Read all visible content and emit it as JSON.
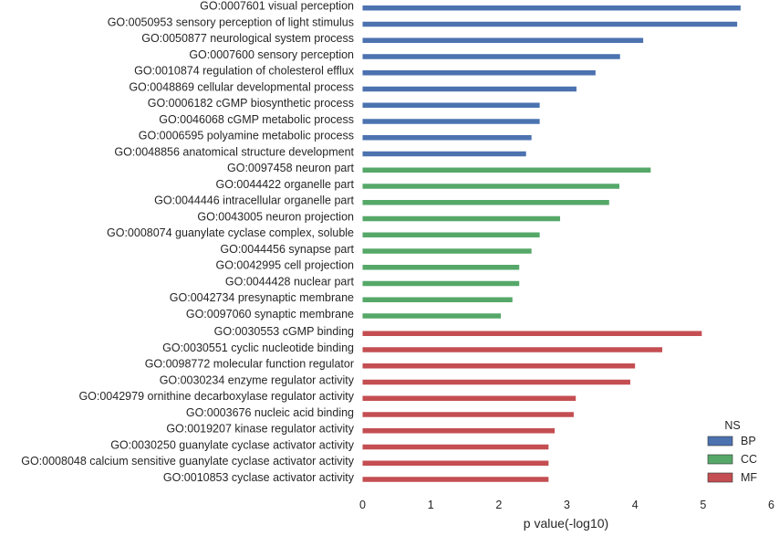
{
  "chart_data": {
    "type": "bar",
    "orientation": "horizontal",
    "xlabel": "p value(-log10)",
    "xlim": [
      0,
      6
    ],
    "xticks": [
      "0",
      "1",
      "2",
      "3",
      "4",
      "5",
      "6"
    ],
    "grid": false,
    "legend": {
      "title": "NS",
      "placement": "bottom-right",
      "entries": [
        {
          "name": "BP",
          "color": "#4c72b0"
        },
        {
          "name": "CC",
          "color": "#55a868"
        },
        {
          "name": "MF",
          "color": "#c44e52"
        }
      ]
    },
    "bars": [
      {
        "label": "GO:0007601 visual perception",
        "group": "BP",
        "value": 5.55
      },
      {
        "label": "GO:0050953 sensory perception of light stimulus",
        "group": "BP",
        "value": 5.5
      },
      {
        "label": "GO:0050877 neurological system process",
        "group": "BP",
        "value": 4.12
      },
      {
        "label": "GO:0007600 sensory perception",
        "group": "BP",
        "value": 3.78
      },
      {
        "label": "GO:0010874 regulation of cholesterol efflux",
        "group": "BP",
        "value": 3.42
      },
      {
        "label": "GO:0048869 cellular developmental process",
        "group": "BP",
        "value": 3.14
      },
      {
        "label": "GO:0006182 cGMP biosynthetic process",
        "group": "BP",
        "value": 2.6
      },
      {
        "label": "GO:0046068 cGMP metabolic process",
        "group": "BP",
        "value": 2.6
      },
      {
        "label": "GO:0006595 polyamine metabolic process",
        "group": "BP",
        "value": 2.48
      },
      {
        "label": "GO:0048856 anatomical structure development",
        "group": "BP",
        "value": 2.4
      },
      {
        "label": "GO:0097458 neuron part",
        "group": "CC",
        "value": 4.23
      },
      {
        "label": "GO:0044422 organelle part",
        "group": "CC",
        "value": 3.77
      },
      {
        "label": "GO:0044446 intracellular organelle part",
        "group": "CC",
        "value": 3.62
      },
      {
        "label": "GO:0043005 neuron projection",
        "group": "CC",
        "value": 2.9
      },
      {
        "label": "GO:0008074 guanylate cyclase complex, soluble",
        "group": "CC",
        "value": 2.6
      },
      {
        "label": "GO:0044456 synapse part",
        "group": "CC",
        "value": 2.48
      },
      {
        "label": "GO:0042995 cell projection",
        "group": "CC",
        "value": 2.3
      },
      {
        "label": "GO:0044428 nuclear part",
        "group": "CC",
        "value": 2.3
      },
      {
        "label": "GO:0042734 presynaptic membrane",
        "group": "CC",
        "value": 2.2
      },
      {
        "label": "GO:0097060 synaptic membrane",
        "group": "CC",
        "value": 2.03
      },
      {
        "label": "GO:0030553 cGMP binding",
        "group": "MF",
        "value": 4.98
      },
      {
        "label": "GO:0030551 cyclic nucleotide binding",
        "group": "MF",
        "value": 4.4
      },
      {
        "label": "GO:0098772 molecular function regulator",
        "group": "MF",
        "value": 4.0
      },
      {
        "label": "GO:0030234 enzyme regulator activity",
        "group": "MF",
        "value": 3.93
      },
      {
        "label": "GO:0042979 ornithine decarboxylase regulator activity",
        "group": "MF",
        "value": 3.13
      },
      {
        "label": "GO:0003676 nucleic acid binding",
        "group": "MF",
        "value": 3.1
      },
      {
        "label": "GO:0019207 kinase regulator activity",
        "group": "MF",
        "value": 2.82
      },
      {
        "label": "GO:0030250 guanylate cyclase activator activity",
        "group": "MF",
        "value": 2.73
      },
      {
        "label": "GO:0008048 calcium sensitive guanylate cyclase activator activity",
        "group": "MF",
        "value": 2.73
      },
      {
        "label": "GO:0010853 cyclase activator activity",
        "group": "MF",
        "value": 2.73
      }
    ]
  }
}
